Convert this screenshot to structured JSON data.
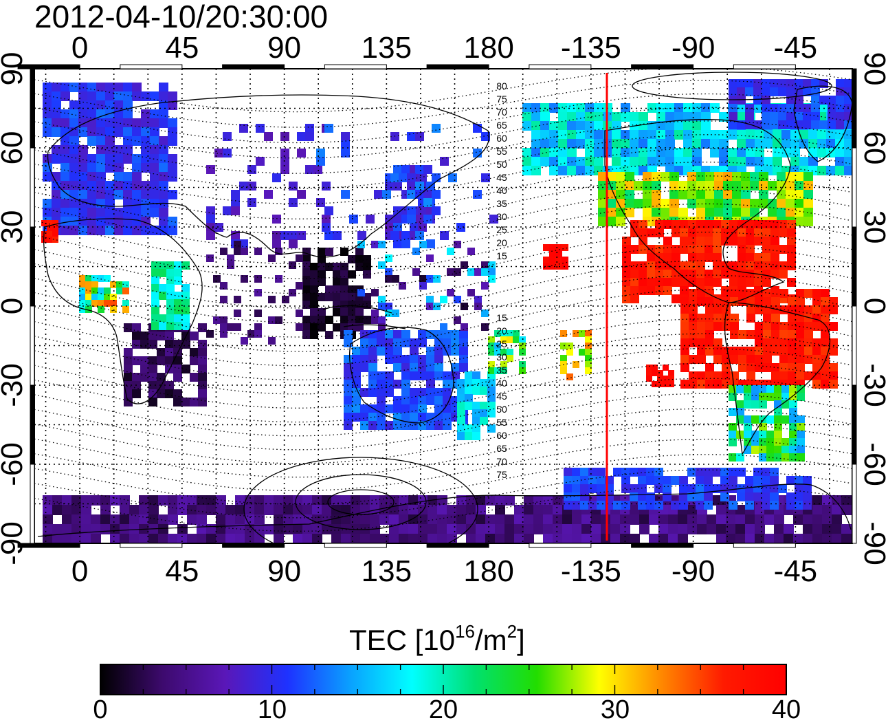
{
  "title": "2012-04-10/20:30:00",
  "map": {
    "top_lon_labels": [
      "0",
      "45",
      "90",
      "135",
      "180",
      "-135",
      "-90",
      "-45"
    ],
    "bottom_lon_labels": [
      "0",
      "45",
      "90",
      "135",
      "180",
      "-135",
      "-90",
      "-45"
    ],
    "left_lat_labels": [
      "90",
      "60",
      "30",
      "0",
      "-30",
      "-60",
      "-90"
    ],
    "right_lat_labels": [
      "90",
      "60",
      "30",
      "0",
      "-30",
      "-60",
      "-90"
    ],
    "north_contour_labels": [
      "80",
      "75",
      "70",
      "65",
      "60",
      "55",
      "50",
      "45",
      "40",
      "35",
      "30",
      "25",
      "20",
      "15"
    ],
    "south_contour_labels": [
      "15",
      "20",
      "25",
      "30",
      "35",
      "40",
      "45",
      "50",
      "55",
      "60",
      "65",
      "70",
      "75"
    ],
    "terminator_longitude": -128,
    "terminator_color": "#ff0000",
    "land_outline_color": "#000000"
  },
  "colorbar": {
    "label_main": "TEC  [10",
    "label_exp": "16",
    "label_unit": "/m",
    "label_unit_exp": "2",
    "label_close": "]",
    "ticks": [
      "0",
      "10",
      "20",
      "30",
      "40"
    ],
    "min": 0,
    "max": 40,
    "colors": [
      "#000000",
      "#3d0a6e",
      "#5a17b8",
      "#1e32ff",
      "#0aa0ff",
      "#00ffff",
      "#00e070",
      "#22dd00",
      "#ffff00",
      "#ff8800",
      "#ff1a00",
      "#ff0000"
    ]
  }
}
